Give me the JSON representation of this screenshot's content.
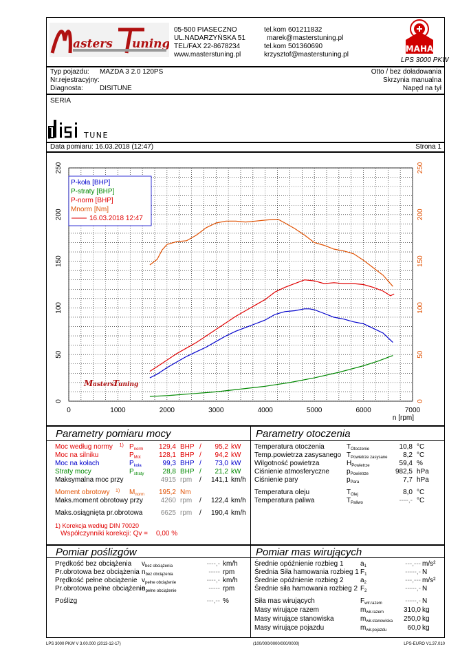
{
  "header": {
    "address1": "05-500 PIASECZNO",
    "address2": "UL.NADARZYŃSKA 51",
    "address3": "TEL/FAX 22-8678234",
    "address4": "www.masterstuning.pl",
    "contact1": "tel.kom 601211832",
    "contact2": "marek@masterstuning.pl",
    "contact3": "tel.kom 501360690",
    "contact4": "krzysztof@masterstuning.pl",
    "logo_text": "Masters Tuning",
    "maha_text": "MAHA",
    "maha_badge": "Maschinenbau Haldenwang",
    "device": "LPS 3000 PKW"
  },
  "vehicle": {
    "type_label": "Typ pojazdu:",
    "type_value": "MAZDA 3 2.0 120PS",
    "reg_label": "Nr.rejestracyjny:",
    "diag_label": "Diagnosta:",
    "diag_value": "DISITUNE",
    "right1": "Otto / bez doładowania",
    "right2": "Skrzynia manualna",
    "right3": "Napęd na tył"
  },
  "seria": "SERIA",
  "brand_logo": "disi TUNE",
  "date_line": "Data pomiaru: 16.03.2018 (12:47)",
  "page_line": "Strona 1",
  "chart_data": {
    "type": "line",
    "xlabel": "n [rpm]",
    "xlim": [
      0,
      7000
    ],
    "ylim": [
      0,
      250
    ],
    "x_ticks": [
      0,
      1000,
      2000,
      3000,
      4000,
      5000,
      6000,
      7000
    ],
    "y_ticks": [
      0,
      50,
      100,
      150,
      200,
      250
    ],
    "y2_ticks": [
      0,
      50,
      100,
      150,
      200,
      250
    ],
    "legend": [
      "P-koła [BHP]",
      "P-straty [BHP]",
      "P-norm [BHP]",
      "Mnorm [Nm]",
      "16.03.2018 12:47"
    ],
    "series": [
      {
        "name": "P-koła [BHP]",
        "color": "#0000cc",
        "x": [
          1650,
          1800,
          2000,
          2200,
          2400,
          2600,
          2800,
          3000,
          3200,
          3400,
          3600,
          3800,
          4000,
          4200,
          4400,
          4600,
          4800,
          4900,
          5000,
          5200,
          5400,
          5600,
          5800,
          6000,
          6200,
          6400,
          6600
        ],
        "y": [
          25,
          29,
          36,
          42,
          48,
          53,
          58,
          64,
          70,
          75,
          79,
          83,
          87,
          93,
          96,
          97,
          99,
          99,
          98,
          94,
          90,
          88,
          85,
          83,
          78,
          73,
          63
        ]
      },
      {
        "name": "P-straty [BHP]",
        "color": "#008800",
        "x": [
          1650,
          2000,
          2500,
          3000,
          3500,
          4000,
          4500,
          5000,
          5500,
          6000,
          6300,
          6600
        ],
        "y": [
          5,
          6,
          8,
          10,
          13,
          16,
          20,
          25,
          31,
          38,
          43,
          49
        ]
      },
      {
        "name": "P-norm [BHP]",
        "color": "#e00000",
        "x": [
          1650,
          1800,
          2000,
          2200,
          2400,
          2600,
          2800,
          3000,
          3200,
          3400,
          3600,
          3800,
          4000,
          4200,
          4400,
          4600,
          4800,
          5000,
          5200,
          5400,
          5600,
          5800,
          6000,
          6200,
          6400,
          6550,
          6625
        ],
        "y": [
          32,
          37,
          44,
          51,
          57,
          63,
          70,
          77,
          84,
          91,
          97,
          103,
          109,
          117,
          122,
          126,
          130,
          129,
          126,
          127,
          126,
          126,
          125,
          122,
          118,
          113,
          115
        ]
      },
      {
        "name": "Mnorm [Nm]",
        "color": "#e05000",
        "x": [
          1650,
          1800,
          1900,
          2000,
          2200,
          2400,
          2600,
          2800,
          3000,
          3200,
          3400,
          3600,
          3800,
          4000,
          4200,
          4260,
          4400,
          4600,
          4800,
          5000,
          5200,
          5400,
          5600,
          5800,
          6000,
          6200,
          6400,
          6600
        ],
        "y": [
          146,
          152,
          162,
          168,
          171,
          172,
          178,
          186,
          191,
          193,
          193,
          192,
          193,
          194,
          195,
          195,
          191,
          185,
          178,
          170,
          167,
          163,
          161,
          158,
          151,
          143,
          135,
          123
        ]
      }
    ]
  },
  "params": {
    "title": "Parametry pomiaru mocy",
    "rows": [
      {
        "label": "Moc według normy",
        "note": "1)",
        "sym": "P",
        "sub": "norm",
        "v1": "129,4",
        "u1": "BHP",
        "sep": "/",
        "v2": "95,2",
        "u2": "kW",
        "color": "#e00000"
      },
      {
        "label": "Moc na silniku",
        "note": "",
        "sym": "P",
        "sub": "Mot",
        "v1": "128,1",
        "u1": "BHP",
        "sep": "/",
        "v2": "94,2",
        "u2": "kW",
        "color": "#e00000"
      },
      {
        "label": "Moc na kołach",
        "note": "",
        "sym": "P",
        "sub": "koła",
        "v1": "99,3",
        "u1": "BHP",
        "sep": "/",
        "v2": "73,0",
        "u2": "kW",
        "color": "#0000cc"
      },
      {
        "label": "Straty mocy",
        "note": "",
        "sym": "P",
        "sub": "straty",
        "v1": "28,8",
        "u1": "BHP",
        "sep": "/",
        "v2": "21,2",
        "u2": "kW",
        "color": "#008800"
      },
      {
        "label": "Maksymalna moc przy",
        "note": "",
        "sym": "",
        "sub": "",
        "v1": "4915",
        "u1": "rpm",
        "sep": "/",
        "v2": "141,1",
        "u2": "km/h",
        "color": "#000"
      }
    ],
    "rows2": [
      {
        "label": "Moment obrotowy",
        "note": "1)",
        "sym": "M",
        "sub": "norm",
        "v1": "195,2",
        "u1": "Nm",
        "sep": "",
        "v2": "",
        "u2": "",
        "color": "#e05000"
      },
      {
        "label": "Maks.moment obrotowy przy",
        "note": "",
        "sym": "",
        "sub": "",
        "v1": "4260",
        "u1": "rpm",
        "sep": "/",
        "v2": "122,4",
        "u2": "km/h",
        "color": "#000"
      }
    ],
    "maxrpm": {
      "label": "Maks.osiągnięta pr.obrotowa",
      "v1": "6625",
      "u1": "rpm",
      "sep": "/",
      "v2": "190,4",
      "u2": "km/h"
    },
    "correction1": "1) Korekcja według DIN 70020",
    "correction2": "Współczynniki korekcji: Qv =",
    "correction_value": "0,00 %"
  },
  "env": {
    "title": "Parametry otoczenia",
    "rows": [
      {
        "label": "Temperatura otoczenia",
        "sym": "T",
        "sub": "Otoczenie",
        "value": "10,8",
        "unit": "°C"
      },
      {
        "label": "Temp.powietrza zasysanego",
        "sym": "T",
        "sub": "Powietrze zasysane",
        "value": "8,2",
        "unit": "°C"
      },
      {
        "label": "Wilgotność powietrza",
        "sym": "H",
        "sub": "Powietrze",
        "value": "59,4",
        "unit": "%"
      },
      {
        "label": "Ciśnienie atmosferyczne",
        "sym": "p",
        "sub": "Powietrze",
        "value": "982,5",
        "unit": "hPa"
      },
      {
        "label": "Ciśnienie pary",
        "sym": "p",
        "sub": "Para",
        "value": "7,7",
        "unit": "hPa"
      }
    ],
    "rows2": [
      {
        "label": "Temperatura oleju",
        "sym": "T",
        "sub": "Olej",
        "value": "8,0",
        "unit": "°C"
      },
      {
        "label": "Temperatura paliwa",
        "sym": "T",
        "sub": "Paliwo",
        "value": "----,-",
        "unit": "°C"
      }
    ]
  },
  "slip": {
    "title": "Pomiar poślizgów",
    "rows": [
      {
        "label": "Prędkość bez obciążenia",
        "sym": "v",
        "sub": "bez obciążenia",
        "value": "----,-",
        "unit": "km/h"
      },
      {
        "label": "Pr.obrotowa bez obciążenia",
        "sym": "n",
        "sub": "bez obciążenia",
        "value": "-----",
        "unit": "rpm"
      },
      {
        "label": "Prędkość pełne obciążenie",
        "sym": "v",
        "sub": "pełne obciążenie",
        "value": "----,-",
        "unit": "km/h"
      },
      {
        "label": "Pr.obrotowa pełne obciążenie",
        "sym": "n",
        "sub": "pełne obciążenie",
        "value": "-----",
        "unit": "rpm"
      }
    ],
    "slip_row": {
      "label": "Poślizg",
      "value": "---,--",
      "unit": "%"
    }
  },
  "mass": {
    "title": "Pomiar mas wirujących",
    "rows": [
      {
        "label": "Średnie opóźnienie rozbieg 1",
        "sym": "a",
        "sub": "1",
        "value": "---,---",
        "unit": "m/s²"
      },
      {
        "label": "Średnia Siła hamowania rozbieg 1",
        "sym": "F",
        "sub": "1",
        "value": "-----,-",
        "unit": "N"
      },
      {
        "label": "Średnie opóźnienie rozbieg 2",
        "sym": "a",
        "sub": "2",
        "value": "---,---",
        "unit": "m/s²"
      },
      {
        "label": "Średnie siła hamowania rozbieg 2",
        "sym": "F",
        "sub": "2",
        "value": "-----,-",
        "unit": "N"
      }
    ],
    "rows2": [
      {
        "label": "Siła mas wirujących",
        "sym": "F",
        "sub": "wir.razem",
        "value": "-----,-",
        "unit": "N"
      },
      {
        "label": "Masy wirujące razem",
        "sym": "m",
        "sub": "wir.razem",
        "value": "310,0",
        "unit": "kg"
      },
      {
        "label": "Masy wirujące stanowiska",
        "sym": "m",
        "sub": "wir.stanowiska",
        "value": "250,0",
        "unit": "kg"
      },
      {
        "label": "Masy wirujące pojazdu",
        "sym": "m",
        "sub": "wir.pojazdu",
        "value": "60,0",
        "unit": "kg"
      }
    ]
  },
  "footer": {
    "left": "LPS 3000 PKW V 3.00.000 (2013-12-17)",
    "center": "(100/000/0000/000/0000)",
    "right": "LPS-EURO V1.37.010"
  }
}
